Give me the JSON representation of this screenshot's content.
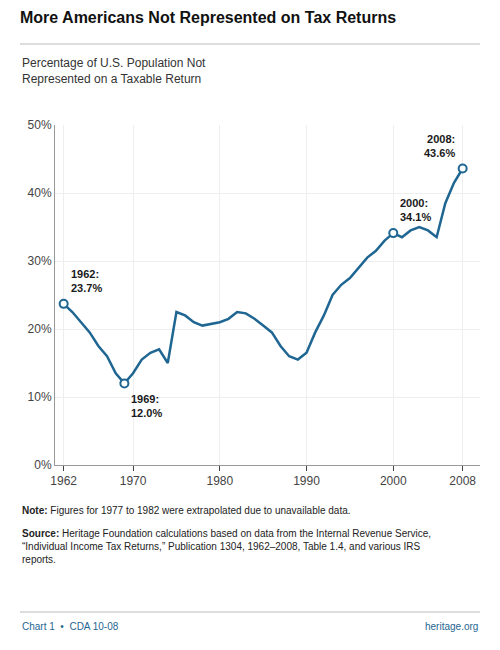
{
  "chart_data": {
    "type": "line",
    "title": "More Americans Not Represented on Tax Returns",
    "subtitle": "Percentage of U.S. Population Not\nRepresented on a Taxable Return",
    "note": {
      "label": "Note:",
      "text": "Figures for 1977 to 1982 were extrapolated due to unavailable data."
    },
    "source": {
      "label": "Source:",
      "text": "Heritage Foundation calculations based on data from the Internal Revenue Service,\n“Individual Income Tax Returns,” Publication 1304, 1962–2008, Table 1.4, and various IRS\nreports."
    },
    "footer": {
      "left": "Chart 1  •  CDA 10-08",
      "right": "heritage.org"
    },
    "color": "#1f6692",
    "x": [
      1962,
      1963,
      1964,
      1965,
      1966,
      1967,
      1968,
      1969,
      1970,
      1971,
      1972,
      1973,
      1974,
      1975,
      1976,
      1977,
      1978,
      1979,
      1980,
      1981,
      1982,
      1983,
      1984,
      1985,
      1986,
      1987,
      1988,
      1989,
      1990,
      1991,
      1992,
      1993,
      1994,
      1995,
      1996,
      1997,
      1998,
      1999,
      2000,
      2001,
      2002,
      2003,
      2004,
      2005,
      2006,
      2007,
      2008
    ],
    "values": [
      23.7,
      22.5,
      21.0,
      19.5,
      17.5,
      16.0,
      13.5,
      12.0,
      13.5,
      15.5,
      16.5,
      17.0,
      15.0,
      22.5,
      22.0,
      21.0,
      20.5,
      20.8,
      21.0,
      21.5,
      22.5,
      22.3,
      21.5,
      20.5,
      19.5,
      17.5,
      16.0,
      15.5,
      16.5,
      19.5,
      22.0,
      25.0,
      26.5,
      27.5,
      29.0,
      30.5,
      31.5,
      33.0,
      34.1,
      33.5,
      34.5,
      35.0,
      34.5,
      33.5,
      38.5,
      41.5,
      43.6
    ],
    "annotations": [
      {
        "x": 1962,
        "y": 23.7,
        "label": "1962:\n23.7%"
      },
      {
        "x": 1969,
        "y": 12.0,
        "label": "1969:\n12.0%"
      },
      {
        "x": 2000,
        "y": 34.1,
        "label": "2000:\n34.1%"
      },
      {
        "x": 2008,
        "y": 43.6,
        "label": "2008:\n43.6%"
      }
    ],
    "xlim": [
      1961,
      2010
    ],
    "xticks": [
      1962,
      1970,
      1980,
      1990,
      2000,
      2008
    ],
    "ylim": [
      0,
      50
    ],
    "yticks": [
      {
        "value": 0,
        "label": "0%"
      },
      {
        "value": 10,
        "label": "10%"
      },
      {
        "value": 20,
        "label": "20%"
      },
      {
        "value": 30,
        "label": "30%"
      },
      {
        "value": 40,
        "label": "40%"
      },
      {
        "value": 50,
        "label": "50%"
      }
    ],
    "grid": true
  }
}
